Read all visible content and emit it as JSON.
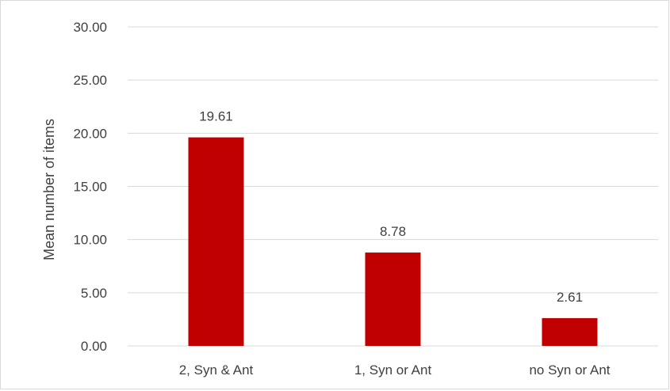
{
  "chart_data": {
    "type": "bar",
    "title": "",
    "xlabel": "",
    "ylabel": "Mean number of items",
    "categories": [
      "2, Syn & Ant",
      "1, Syn or Ant",
      "no Syn or Ant"
    ],
    "values": [
      19.61,
      8.78,
      2.61
    ],
    "data_labels": [
      "19.61",
      "8.78",
      "2.61"
    ],
    "ylim": [
      0,
      30
    ],
    "yticks": [
      "0.00",
      "5.00",
      "10.00",
      "15.00",
      "20.00",
      "25.00",
      "30.00"
    ],
    "grid": true,
    "legend": "none",
    "bar_color": "#c00000"
  }
}
